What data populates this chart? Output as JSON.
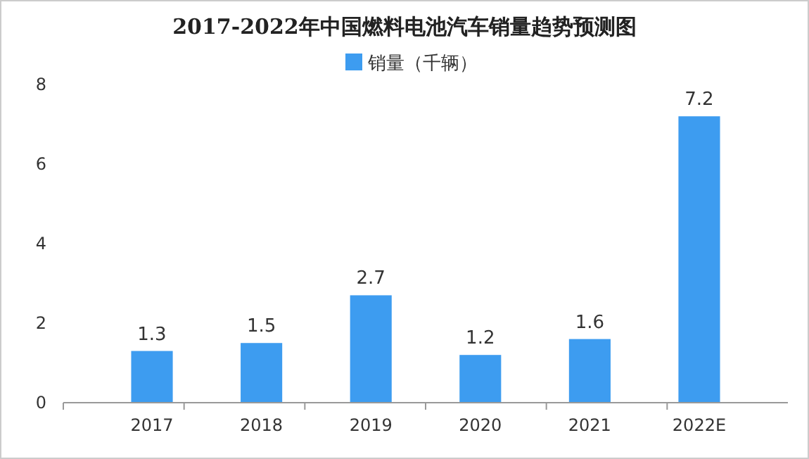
{
  "chart_data": {
    "type": "bar",
    "title": "2017-2022年中国燃料电池汽车销量趋势预测图",
    "categories": [
      "2017",
      "2018",
      "2019",
      "2020",
      "2021",
      "2022E"
    ],
    "series": [
      {
        "name": "销量（千辆）",
        "color": "#3d9cf0",
        "values": [
          1.3,
          1.5,
          2.7,
          1.2,
          1.6,
          7.2
        ]
      }
    ],
    "ylim": [
      0,
      8
    ],
    "yticks": [
      0,
      2,
      4,
      6,
      8
    ],
    "data_labels": true,
    "legend": "top",
    "grid": false
  }
}
